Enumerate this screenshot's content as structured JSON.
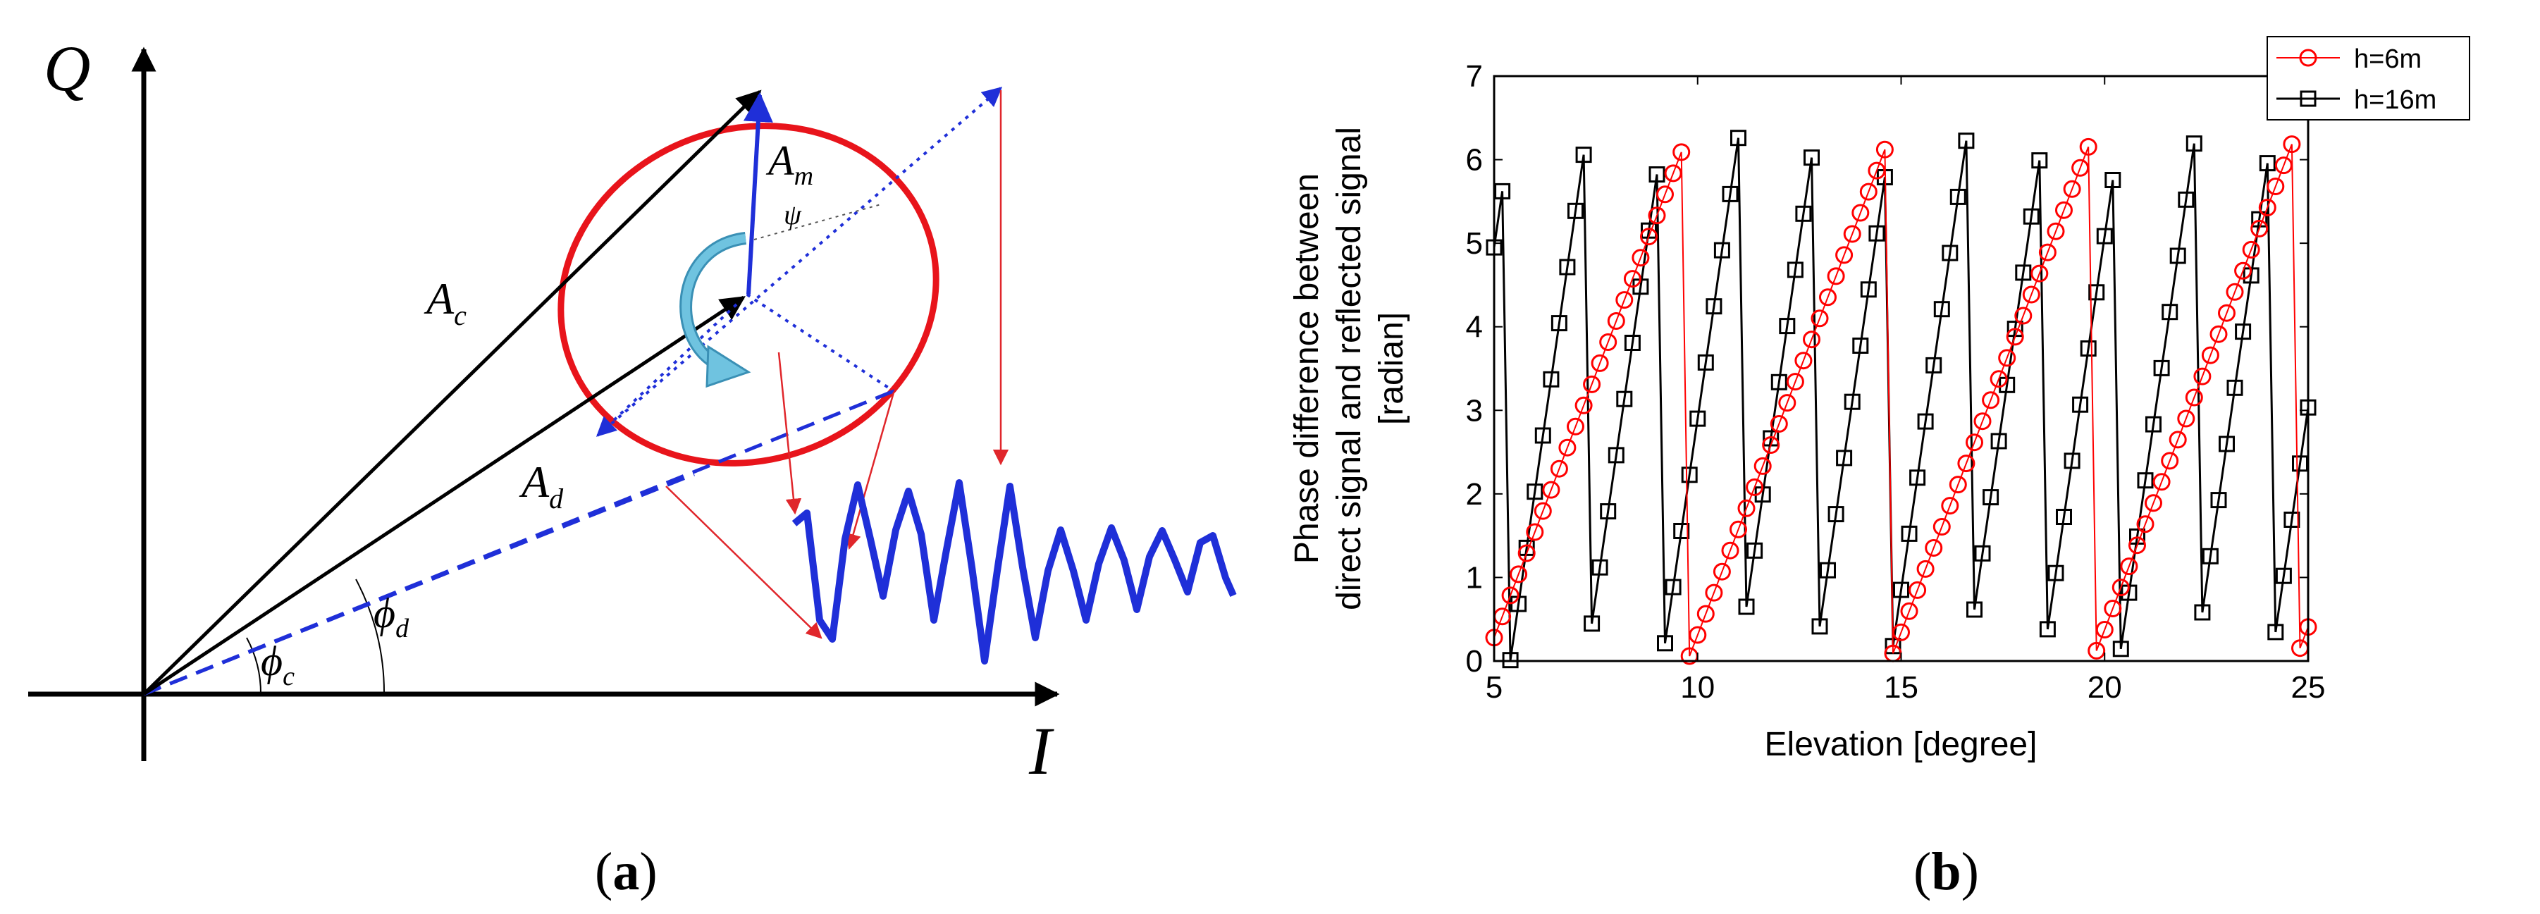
{
  "panel_a": {
    "caption_open": "(",
    "caption_letter": "a",
    "caption_close": ")",
    "axis_i_label": "I",
    "axis_q_label": "Q",
    "ac_label": "A",
    "ac_sub": "c",
    "ad_label": "A",
    "ad_sub": "d",
    "am_label": "A",
    "am_sub": "m",
    "psi_label": "ψ",
    "phic_label": "ϕ",
    "phic_sub": "c",
    "phid_label": "ϕ",
    "phid_sub": "d",
    "colors": {
      "ellipse": "#e8141b",
      "blue": "#1f2fd8",
      "arrow_red": "#e0262b",
      "rotation": "#6fc3e0",
      "black": "#000000"
    }
  },
  "panel_b": {
    "caption_open": "(",
    "caption_letter": "b",
    "caption_close": ")"
  },
  "chart_data": {
    "type": "line",
    "xlabel": "Elevation [degree]",
    "ylabel_line1": "Phase difference between",
    "ylabel_line2": "direct signal and reflected signal",
    "ylabel_line3": "[radian]",
    "xlim": [
      5,
      25
    ],
    "ylim": [
      0,
      7
    ],
    "xticks": [
      "5",
      "10",
      "15",
      "20",
      "25"
    ],
    "yticks": [
      "0",
      "1",
      "2",
      "3",
      "4",
      "5",
      "6",
      "7"
    ],
    "grid": false,
    "legend_position": "top-right",
    "series": [
      {
        "name": "h=6m",
        "color": "#ff0000",
        "marker": "circle",
        "x_start": 5.0,
        "x_end": 25.0,
        "x_step": 0.2,
        "rate_per_degree": 1.263,
        "phase_at_start": 0.28,
        "wrap": 6.2832
      },
      {
        "name": "h=16m",
        "color": "#000000",
        "marker": "square",
        "x_start": 5.0,
        "x_end": 25.0,
        "x_step": 0.2,
        "rate_per_degree": 3.36,
        "phase_at_start": 4.95,
        "wrap": 6.2832
      }
    ]
  }
}
